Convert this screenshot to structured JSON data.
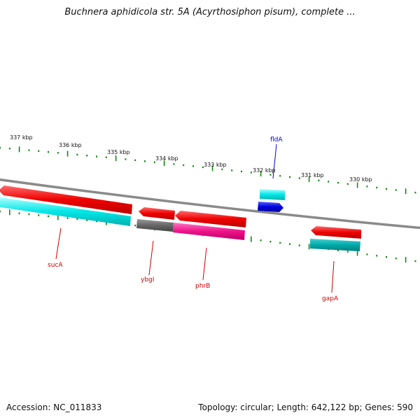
{
  "title": "Buchnera aphidicola str. 5A (Acyrthosiphon pisum), complete ...",
  "footer": {
    "accession": "Accession: NC_011833",
    "summary": "Topology: circular; Length: 642,122 bp; Genes: 590"
  },
  "colors": {
    "backbone": "#888888",
    "tick": "#118811",
    "gene_red": "#ee0000",
    "gene_cyan": "#00e0e0",
    "gene_teal": "#00b4b4",
    "gene_gray": "#666666",
    "gene_magenta": "#ee1188",
    "gene_blue": "#0000dd",
    "label_red": "#cc0000",
    "label_blue": "#0000cc"
  },
  "scale_ticks": [
    "337 kbp",
    "336 kbp",
    "335 kbp",
    "334 kbp",
    "333 kbp",
    "332 kbp",
    "331 kbp",
    "330 kbp"
  ],
  "gene_labels": [
    {
      "id": "sucA",
      "text": "sucA",
      "color": "label_red"
    },
    {
      "id": "ybgI",
      "text": "ybgI",
      "color": "label_red"
    },
    {
      "id": "phrB",
      "text": "phrB",
      "color": "label_red"
    },
    {
      "id": "gapA",
      "text": "gapA",
      "color": "label_red"
    },
    {
      "id": "fldA",
      "text": "fldA",
      "color": "label_blue"
    }
  ]
}
